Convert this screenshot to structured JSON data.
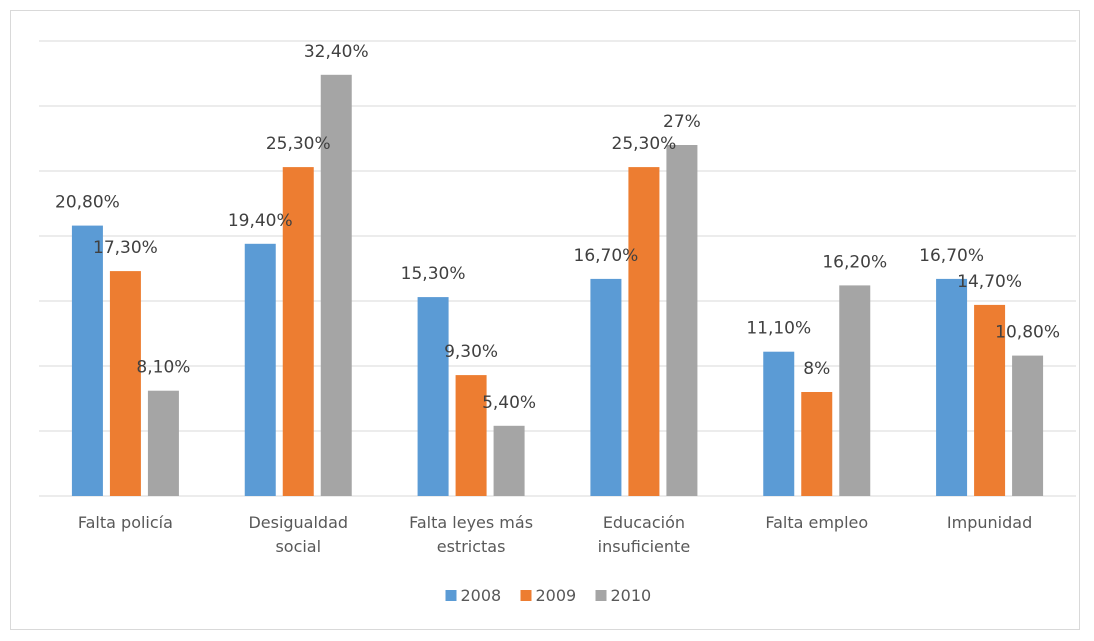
{
  "chart_data": {
    "type": "bar",
    "categories": [
      [
        "Falta policía"
      ],
      [
        "Desigualdad",
        "social"
      ],
      [
        "Falta leyes más",
        "estrictas"
      ],
      [
        "Educación",
        "insuficiente"
      ],
      [
        "Falta empleo"
      ],
      [
        "Impunidad"
      ]
    ],
    "series": [
      {
        "name": "2008",
        "color": "#5b9bd5",
        "values": [
          20.8,
          19.4,
          15.3,
          16.7,
          11.1,
          16.7
        ],
        "labels": [
          "20,80%",
          "19,40%",
          "15,30%",
          "16,70%",
          "11,10%",
          "16,70%"
        ]
      },
      {
        "name": "2009",
        "color": "#ed7d31",
        "values": [
          17.3,
          25.3,
          9.3,
          25.3,
          8.0,
          14.7
        ],
        "labels": [
          "17,30%",
          "25,30%",
          "9,30%",
          "25,30%",
          "8%",
          "14,70%"
        ]
      },
      {
        "name": "2010",
        "color": "#a5a5a5",
        "values": [
          8.1,
          32.4,
          5.4,
          27.0,
          16.2,
          10.8
        ],
        "labels": [
          "8,10%",
          "32,40%",
          "5,40%",
          "27%",
          "16,20%",
          "10,80%"
        ]
      }
    ],
    "ylim": [
      0,
      35
    ],
    "y_gridline_step": 5,
    "y_tick_labels_shown": false,
    "grid": true,
    "legend_position": "bottom",
    "gridline_color": "#d9d9d9"
  }
}
